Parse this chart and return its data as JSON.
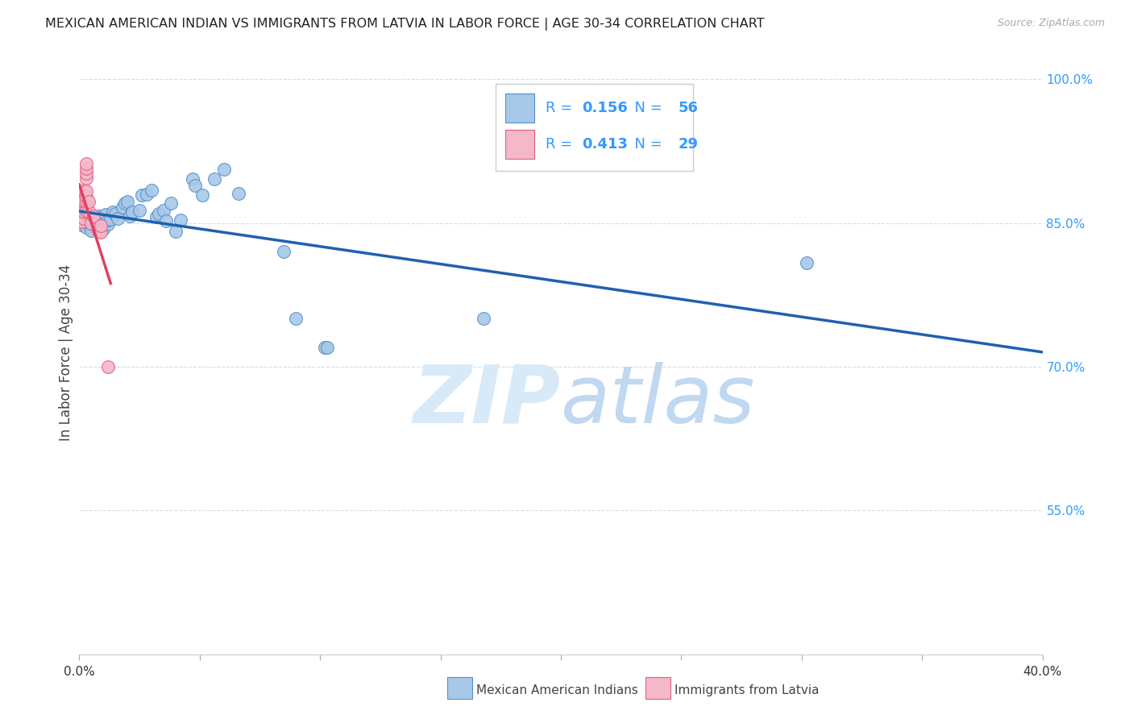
{
  "title": "MEXICAN AMERICAN INDIAN VS IMMIGRANTS FROM LATVIA IN LABOR FORCE | AGE 30-34 CORRELATION CHART",
  "source": "Source: ZipAtlas.com",
  "ylabel": "In Labor Force | Age 30-34",
  "xlim": [
    0.0,
    0.4
  ],
  "ylim": [
    0.4,
    1.03
  ],
  "y_ticks": [
    1.0,
    0.85,
    0.7,
    0.55
  ],
  "x_tick_positions": [
    0.0,
    0.05,
    0.1,
    0.15,
    0.2,
    0.25,
    0.3,
    0.35,
    0.4
  ],
  "blue_R": "0.156",
  "blue_N": "56",
  "pink_R": "0.413",
  "pink_N": "29",
  "blue_color": "#a8c8e8",
  "pink_color": "#f4b8c8",
  "blue_edge_color": "#5590c8",
  "pink_edge_color": "#e06080",
  "blue_line_color": "#2060b0",
  "pink_line_color": "#e04060",
  "watermark_color": "#ddeeff",
  "title_color": "#222222",
  "source_color": "#aaaaaa",
  "ylabel_color": "#444444",
  "right_axis_color": "#3399ff",
  "grid_color": "#dddddd",
  "blue_scatter": [
    [
      0.001,
      0.853
    ],
    [
      0.001,
      0.848
    ],
    [
      0.002,
      0.851
    ],
    [
      0.002,
      0.855
    ],
    [
      0.003,
      0.845
    ],
    [
      0.003,
      0.852
    ],
    [
      0.003,
      0.855
    ],
    [
      0.004,
      0.849
    ],
    [
      0.004,
      0.853
    ],
    [
      0.005,
      0.842
    ],
    [
      0.005,
      0.85
    ],
    [
      0.006,
      0.851
    ],
    [
      0.006,
      0.854
    ],
    [
      0.006,
      0.856
    ],
    [
      0.007,
      0.85
    ],
    [
      0.007,
      0.854
    ],
    [
      0.008,
      0.852
    ],
    [
      0.008,
      0.857
    ],
    [
      0.009,
      0.841
    ],
    [
      0.01,
      0.844
    ],
    [
      0.01,
      0.856
    ],
    [
      0.011,
      0.859
    ],
    [
      0.012,
      0.849
    ],
    [
      0.012,
      0.853
    ],
    [
      0.013,
      0.854
    ],
    [
      0.014,
      0.861
    ],
    [
      0.015,
      0.86
    ],
    [
      0.016,
      0.855
    ],
    [
      0.018,
      0.866
    ],
    [
      0.019,
      0.871
    ],
    [
      0.02,
      0.872
    ],
    [
      0.021,
      0.857
    ],
    [
      0.022,
      0.861
    ],
    [
      0.025,
      0.863
    ],
    [
      0.026,
      0.879
    ],
    [
      0.028,
      0.88
    ],
    [
      0.03,
      0.884
    ],
    [
      0.032,
      0.856
    ],
    [
      0.033,
      0.86
    ],
    [
      0.035,
      0.863
    ],
    [
      0.036,
      0.852
    ],
    [
      0.038,
      0.871
    ],
    [
      0.04,
      0.841
    ],
    [
      0.042,
      0.853
    ],
    [
      0.047,
      0.896
    ],
    [
      0.048,
      0.889
    ],
    [
      0.051,
      0.879
    ],
    [
      0.056,
      0.896
    ],
    [
      0.06,
      0.906
    ],
    [
      0.066,
      0.881
    ],
    [
      0.085,
      0.82
    ],
    [
      0.09,
      0.75
    ],
    [
      0.102,
      0.72
    ],
    [
      0.103,
      0.72
    ],
    [
      0.168,
      0.75
    ],
    [
      0.302,
      0.808
    ]
  ],
  "pink_scatter": [
    [
      0.0,
      0.876
    ],
    [
      0.0,
      0.881
    ],
    [
      0.0,
      0.867
    ],
    [
      0.0,
      0.862
    ],
    [
      0.001,
      0.866
    ],
    [
      0.001,
      0.872
    ],
    [
      0.001,
      0.877
    ],
    [
      0.001,
      0.858
    ],
    [
      0.001,
      0.851
    ],
    [
      0.002,
      0.855
    ],
    [
      0.002,
      0.861
    ],
    [
      0.002,
      0.873
    ],
    [
      0.002,
      0.884
    ],
    [
      0.003,
      0.862
    ],
    [
      0.003,
      0.872
    ],
    [
      0.003,
      0.877
    ],
    [
      0.003,
      0.883
    ],
    [
      0.003,
      0.897
    ],
    [
      0.003,
      0.902
    ],
    [
      0.003,
      0.907
    ],
    [
      0.003,
      0.912
    ],
    [
      0.004,
      0.862
    ],
    [
      0.004,
      0.872
    ],
    [
      0.005,
      0.85
    ],
    [
      0.006,
      0.857
    ],
    [
      0.008,
      0.842
    ],
    [
      0.009,
      0.84
    ],
    [
      0.009,
      0.847
    ],
    [
      0.012,
      0.7
    ]
  ],
  "legend_blue_label": "Mexican American Indians",
  "legend_pink_label": "Immigrants from Latvia"
}
